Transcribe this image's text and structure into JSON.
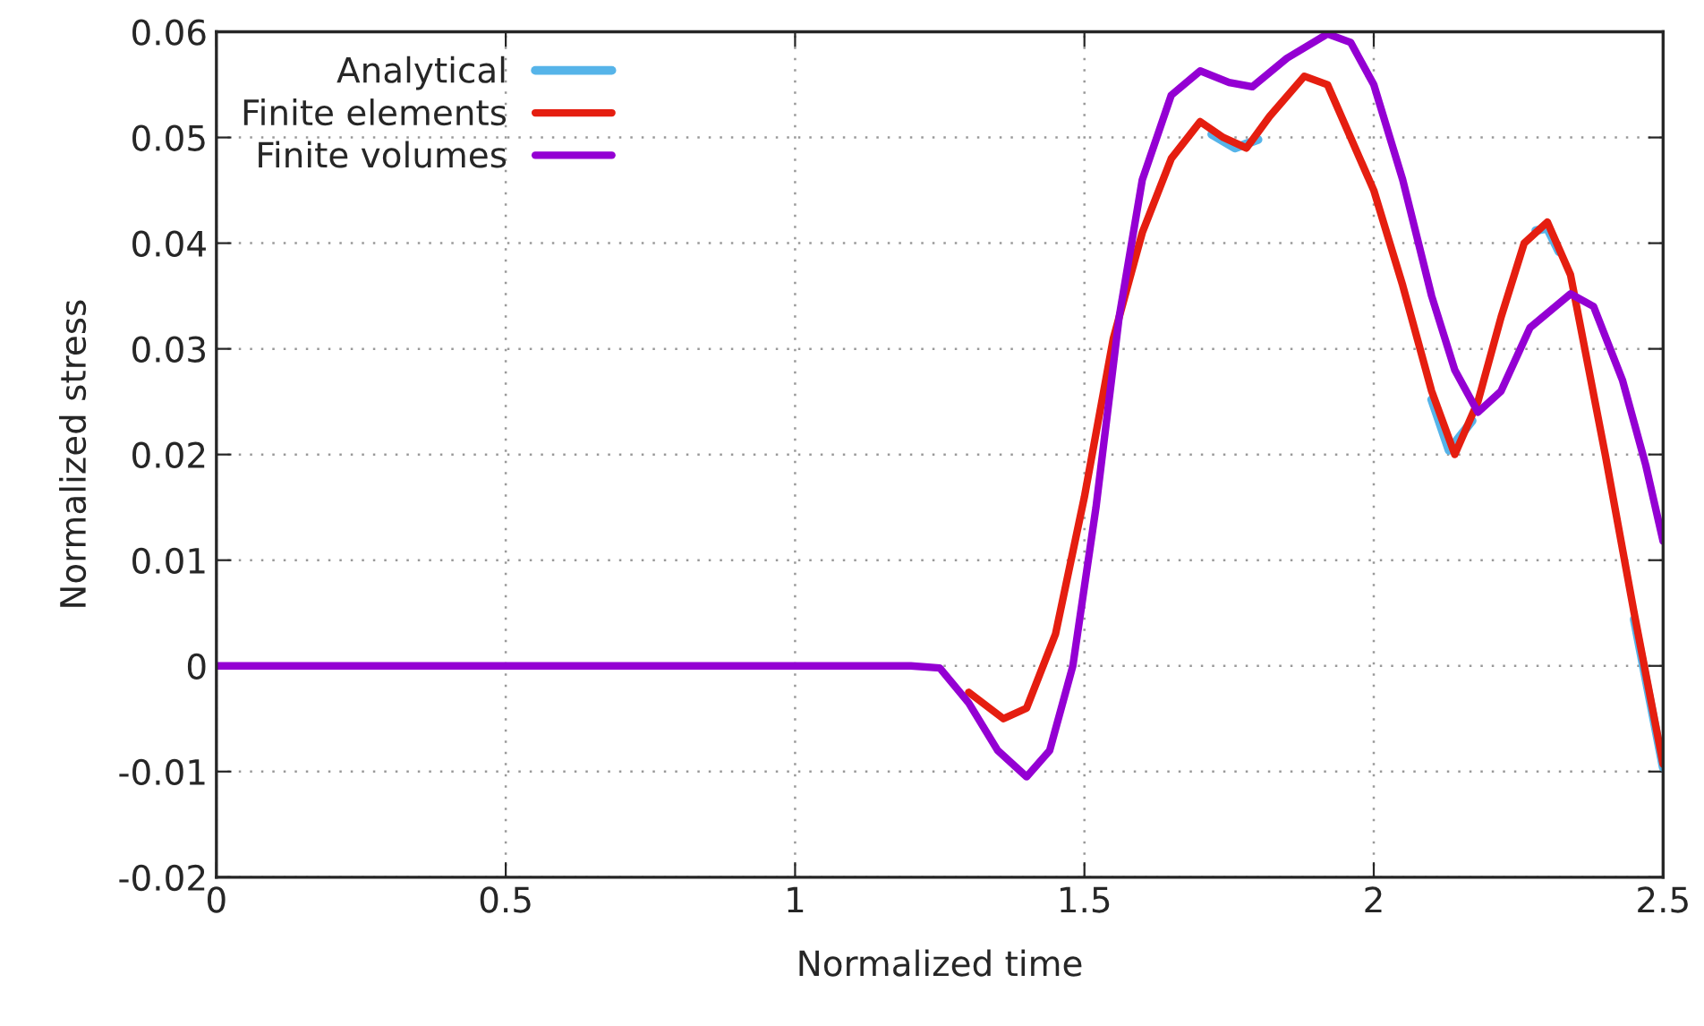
{
  "chart_data": {
    "type": "line",
    "xlabel": "Normalized time",
    "ylabel": "Normalized stress",
    "xlim": [
      0,
      2.5
    ],
    "ylim": [
      -0.02,
      0.06
    ],
    "xticks": [
      0,
      0.5,
      1,
      1.5,
      2,
      2.5
    ],
    "yticks": [
      -0.02,
      -0.01,
      0,
      0.01,
      0.02,
      0.03,
      0.04,
      0.05,
      0.06
    ],
    "grid": true,
    "legend": "top left",
    "line_style": "solid",
    "marker": "none",
    "series": [
      {
        "name": "Analytical",
        "color": "#56b4e9",
        "x": [
          1.72,
          1.76,
          1.8,
          1.9,
          2.1,
          2.13,
          2.17,
          2.2,
          2.28,
          2.3,
          2.32,
          2.4,
          2.45,
          2.5
        ],
        "values": [
          0.0503,
          0.049,
          0.0498,
          null,
          0.0252,
          0.0204,
          0.0232,
          null,
          0.0412,
          0.0414,
          0.0392,
          null,
          0.0044,
          -0.0096
        ]
      },
      {
        "name": "Finite elements",
        "color": "#e51e10",
        "x": [
          1.3,
          1.36,
          1.4,
          1.45,
          1.5,
          1.55,
          1.6,
          1.65,
          1.7,
          1.74,
          1.78,
          1.82,
          1.88,
          1.92,
          2.0,
          2.05,
          2.1,
          2.14,
          2.18,
          2.22,
          2.26,
          2.3,
          2.34,
          2.4,
          2.45,
          2.5
        ],
        "values": [
          -0.0025,
          -0.005,
          -0.004,
          0.003,
          0.016,
          0.031,
          0.041,
          0.048,
          0.0515,
          0.05,
          0.049,
          0.052,
          0.0558,
          0.055,
          0.045,
          0.036,
          0.026,
          0.02,
          0.025,
          0.033,
          0.04,
          0.042,
          0.037,
          0.02,
          0.005,
          -0.0093
        ]
      },
      {
        "name": "Finite volumes",
        "color": "#9400d3",
        "x": [
          0,
          0.5,
          1,
          1.2,
          1.25,
          1.3,
          1.35,
          1.4,
          1.44,
          1.48,
          1.52,
          1.56,
          1.6,
          1.65,
          1.7,
          1.75,
          1.79,
          1.85,
          1.92,
          1.96,
          2.0,
          2.05,
          2.1,
          2.14,
          2.18,
          2.22,
          2.27,
          2.34,
          2.38,
          2.43,
          2.47,
          2.5
        ],
        "values": [
          0,
          0,
          0,
          0,
          -0.0002,
          -0.0035,
          -0.008,
          -0.0105,
          -0.008,
          0.0,
          0.015,
          0.033,
          0.046,
          0.054,
          0.0563,
          0.0552,
          0.0548,
          0.0575,
          0.0598,
          0.059,
          0.055,
          0.046,
          0.035,
          0.028,
          0.024,
          0.026,
          0.032,
          0.0352,
          0.034,
          0.027,
          0.019,
          0.0118
        ]
      }
    ]
  }
}
